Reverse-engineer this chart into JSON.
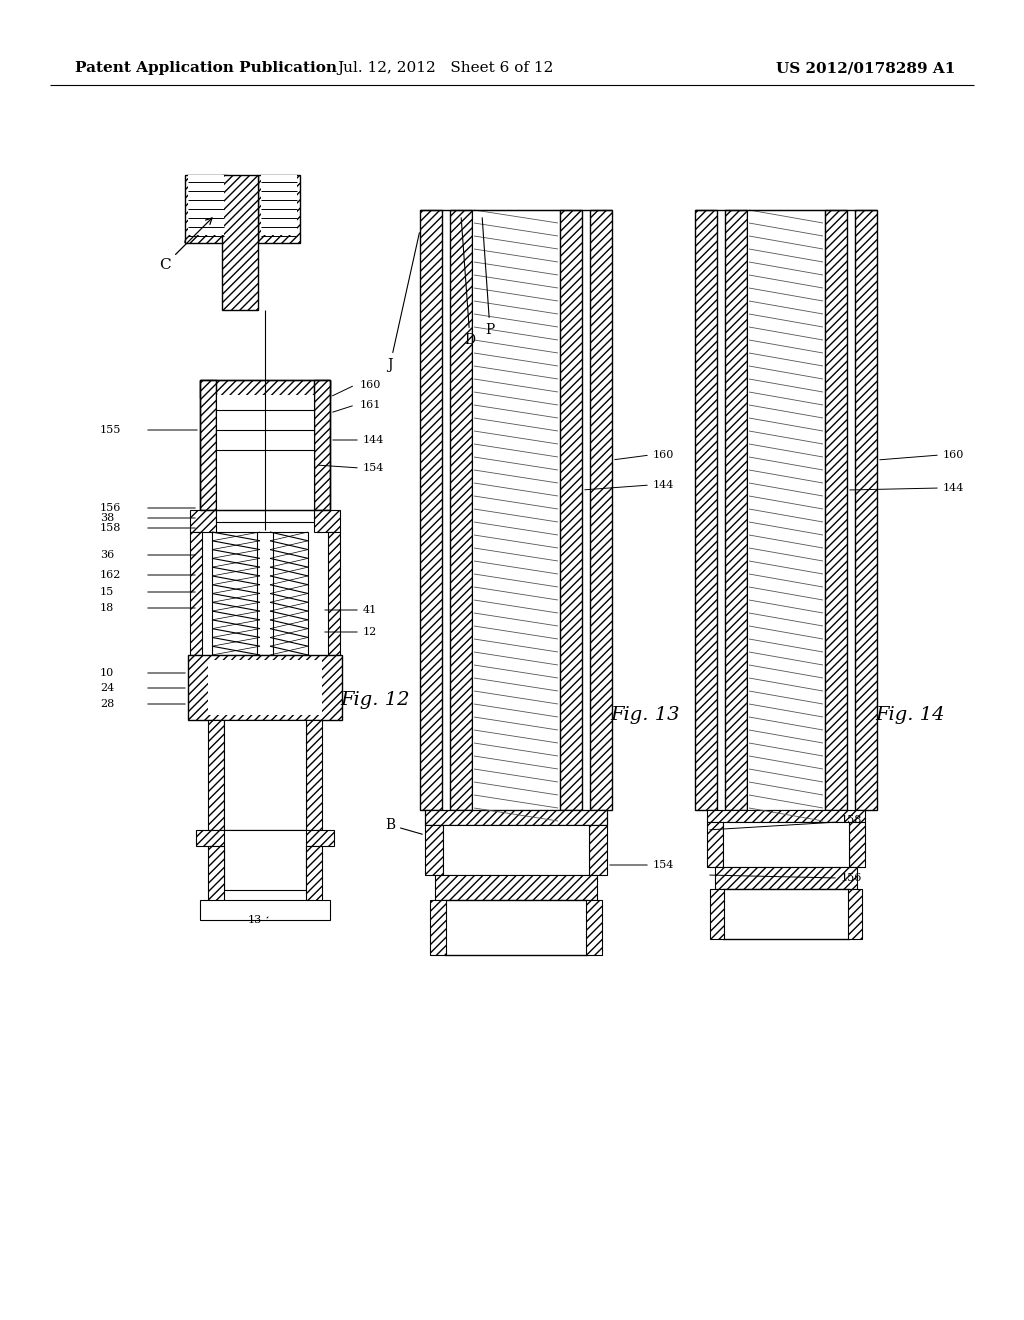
{
  "header_left": "Patent Application Publication",
  "header_center": "Jul. 12, 2012   Sheet 6 of 12",
  "header_right": "US 2012/0178289 A1",
  "background_color": "#ffffff"
}
